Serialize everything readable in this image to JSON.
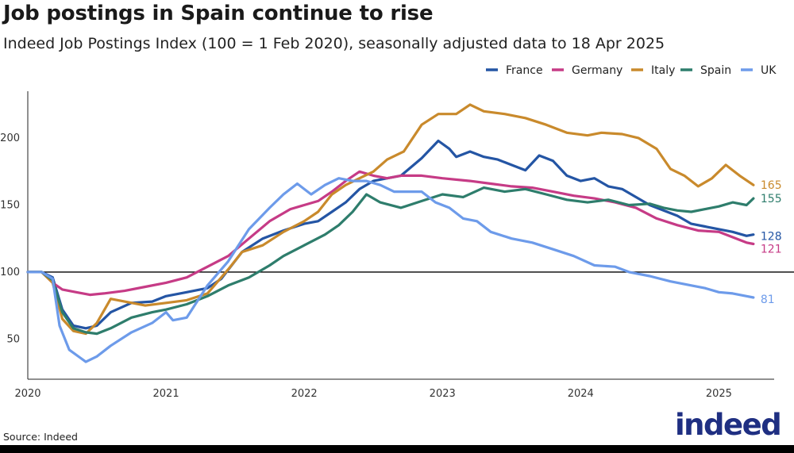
{
  "header": {
    "title": "Job postings in Spain continue to rise",
    "subtitle": "Indeed Job Postings Index (100 = 1 Feb 2020), seasonally adjusted data to 18 Apr 2025"
  },
  "footer": {
    "source": "Source: Indeed",
    "logo_text": "indeed"
  },
  "chart_data": {
    "type": "line",
    "title": "Job postings in Spain continue to rise",
    "subtitle": "Indeed Job Postings Index (100 = 1 Feb 2020), seasonally adjusted data to 18 Apr 2025",
    "xlabel": "",
    "ylabel": "",
    "xlim": [
      2020.0,
      2025.4
    ],
    "ylim": [
      20,
      235
    ],
    "x_ticks": [
      2020,
      2021,
      2022,
      2023,
      2024,
      2025
    ],
    "x_tick_labels": [
      "2020",
      "2021",
      "2022",
      "2023",
      "2024",
      "2025"
    ],
    "y_ticks": [
      50,
      100,
      150,
      200
    ],
    "y_tick_labels": [
      "50",
      "100",
      "150",
      "200"
    ],
    "reference_line": 100,
    "legend_position": "top-right",
    "series": [
      {
        "name": "France",
        "color": "#2455a4",
        "end_label": "128",
        "points": [
          [
            2020.0,
            100
          ],
          [
            2020.1,
            100
          ],
          [
            2020.18,
            96
          ],
          [
            2020.25,
            72
          ],
          [
            2020.33,
            60
          ],
          [
            2020.42,
            58
          ],
          [
            2020.5,
            60
          ],
          [
            2020.6,
            70
          ],
          [
            2020.75,
            77
          ],
          [
            2020.9,
            78
          ],
          [
            2021.0,
            82
          ],
          [
            2021.15,
            85
          ],
          [
            2021.3,
            88
          ],
          [
            2021.4,
            95
          ],
          [
            2021.55,
            115
          ],
          [
            2021.7,
            125
          ],
          [
            2021.85,
            131
          ],
          [
            2022.0,
            136
          ],
          [
            2022.1,
            138
          ],
          [
            2022.2,
            145
          ],
          [
            2022.3,
            152
          ],
          [
            2022.4,
            162
          ],
          [
            2022.5,
            168
          ],
          [
            2022.6,
            170
          ],
          [
            2022.7,
            172
          ],
          [
            2022.85,
            185
          ],
          [
            2022.97,
            198
          ],
          [
            2023.05,
            192
          ],
          [
            2023.1,
            186
          ],
          [
            2023.2,
            190
          ],
          [
            2023.3,
            186
          ],
          [
            2023.4,
            184
          ],
          [
            2023.5,
            180
          ],
          [
            2023.6,
            176
          ],
          [
            2023.7,
            187
          ],
          [
            2023.8,
            183
          ],
          [
            2023.9,
            172
          ],
          [
            2024.0,
            168
          ],
          [
            2024.1,
            170
          ],
          [
            2024.2,
            164
          ],
          [
            2024.3,
            162
          ],
          [
            2024.4,
            156
          ],
          [
            2024.5,
            150
          ],
          [
            2024.6,
            146
          ],
          [
            2024.7,
            142
          ],
          [
            2024.8,
            136
          ],
          [
            2024.9,
            134
          ],
          [
            2025.0,
            132
          ],
          [
            2025.1,
            130
          ],
          [
            2025.2,
            127
          ],
          [
            2025.25,
            128
          ]
        ]
      },
      {
        "name": "Germany",
        "color": "#c63b86",
        "end_label": "121",
        "points": [
          [
            2020.0,
            100
          ],
          [
            2020.1,
            100
          ],
          [
            2020.18,
            92
          ],
          [
            2020.25,
            87
          ],
          [
            2020.35,
            85
          ],
          [
            2020.45,
            83
          ],
          [
            2020.55,
            84
          ],
          [
            2020.7,
            86
          ],
          [
            2020.85,
            89
          ],
          [
            2021.0,
            92
          ],
          [
            2021.15,
            96
          ],
          [
            2021.3,
            104
          ],
          [
            2021.45,
            112
          ],
          [
            2021.6,
            125
          ],
          [
            2021.75,
            138
          ],
          [
            2021.9,
            147
          ],
          [
            2022.0,
            150
          ],
          [
            2022.1,
            153
          ],
          [
            2022.2,
            160
          ],
          [
            2022.3,
            168
          ],
          [
            2022.4,
            175
          ],
          [
            2022.5,
            172
          ],
          [
            2022.6,
            170
          ],
          [
            2022.7,
            172
          ],
          [
            2022.85,
            172
          ],
          [
            2023.0,
            170
          ],
          [
            2023.2,
            168
          ],
          [
            2023.35,
            166
          ],
          [
            2023.5,
            164
          ],
          [
            2023.65,
            163
          ],
          [
            2023.8,
            160
          ],
          [
            2023.95,
            157
          ],
          [
            2024.1,
            155
          ],
          [
            2024.25,
            152
          ],
          [
            2024.4,
            148
          ],
          [
            2024.55,
            140
          ],
          [
            2024.7,
            135
          ],
          [
            2024.85,
            131
          ],
          [
            2025.0,
            130
          ],
          [
            2025.1,
            126
          ],
          [
            2025.2,
            122
          ],
          [
            2025.25,
            121
          ]
        ]
      },
      {
        "name": "Italy",
        "color": "#c98a2c",
        "end_label": "165",
        "points": [
          [
            2020.0,
            100
          ],
          [
            2020.1,
            100
          ],
          [
            2020.18,
            92
          ],
          [
            2020.25,
            65
          ],
          [
            2020.33,
            56
          ],
          [
            2020.42,
            54
          ],
          [
            2020.5,
            62
          ],
          [
            2020.6,
            80
          ],
          [
            2020.7,
            78
          ],
          [
            2020.85,
            75
          ],
          [
            2021.0,
            77
          ],
          [
            2021.15,
            79
          ],
          [
            2021.3,
            84
          ],
          [
            2021.45,
            102
          ],
          [
            2021.55,
            115
          ],
          [
            2021.7,
            120
          ],
          [
            2021.85,
            130
          ],
          [
            2022.0,
            138
          ],
          [
            2022.1,
            145
          ],
          [
            2022.2,
            158
          ],
          [
            2022.3,
            165
          ],
          [
            2022.4,
            170
          ],
          [
            2022.5,
            175
          ],
          [
            2022.6,
            184
          ],
          [
            2022.72,
            190
          ],
          [
            2022.85,
            210
          ],
          [
            2022.97,
            218
          ],
          [
            2023.1,
            218
          ],
          [
            2023.2,
            225
          ],
          [
            2023.3,
            220
          ],
          [
            2023.45,
            218
          ],
          [
            2023.6,
            215
          ],
          [
            2023.75,
            210
          ],
          [
            2023.9,
            204
          ],
          [
            2024.05,
            202
          ],
          [
            2024.15,
            204
          ],
          [
            2024.3,
            203
          ],
          [
            2024.42,
            200
          ],
          [
            2024.55,
            192
          ],
          [
            2024.65,
            177
          ],
          [
            2024.75,
            172
          ],
          [
            2024.85,
            164
          ],
          [
            2024.95,
            170
          ],
          [
            2025.05,
            180
          ],
          [
            2025.15,
            172
          ],
          [
            2025.25,
            165
          ]
        ]
      },
      {
        "name": "Spain",
        "color": "#2e7d6c",
        "end_label": "155",
        "points": [
          [
            2020.0,
            100
          ],
          [
            2020.1,
            100
          ],
          [
            2020.18,
            94
          ],
          [
            2020.25,
            70
          ],
          [
            2020.33,
            58
          ],
          [
            2020.42,
            55
          ],
          [
            2020.5,
            54
          ],
          [
            2020.6,
            58
          ],
          [
            2020.75,
            66
          ],
          [
            2020.9,
            70
          ],
          [
            2021.0,
            72
          ],
          [
            2021.15,
            76
          ],
          [
            2021.3,
            82
          ],
          [
            2021.45,
            90
          ],
          [
            2021.6,
            96
          ],
          [
            2021.75,
            105
          ],
          [
            2021.85,
            112
          ],
          [
            2022.0,
            120
          ],
          [
            2022.15,
            128
          ],
          [
            2022.25,
            135
          ],
          [
            2022.35,
            145
          ],
          [
            2022.45,
            158
          ],
          [
            2022.55,
            152
          ],
          [
            2022.7,
            148
          ],
          [
            2022.85,
            153
          ],
          [
            2023.0,
            158
          ],
          [
            2023.15,
            156
          ],
          [
            2023.3,
            163
          ],
          [
            2023.45,
            160
          ],
          [
            2023.6,
            162
          ],
          [
            2023.75,
            158
          ],
          [
            2023.9,
            154
          ],
          [
            2024.05,
            152
          ],
          [
            2024.2,
            154
          ],
          [
            2024.35,
            150
          ],
          [
            2024.5,
            151
          ],
          [
            2024.6,
            148
          ],
          [
            2024.7,
            146
          ],
          [
            2024.8,
            145
          ],
          [
            2024.9,
            147
          ],
          [
            2025.0,
            149
          ],
          [
            2025.1,
            152
          ],
          [
            2025.2,
            150
          ],
          [
            2025.25,
            155
          ]
        ]
      },
      {
        "name": "UK",
        "color": "#6d9bea",
        "end_label": "81",
        "points": [
          [
            2020.0,
            100
          ],
          [
            2020.1,
            100
          ],
          [
            2020.18,
            95
          ],
          [
            2020.23,
            60
          ],
          [
            2020.3,
            42
          ],
          [
            2020.38,
            36
          ],
          [
            2020.42,
            33
          ],
          [
            2020.5,
            37
          ],
          [
            2020.6,
            45
          ],
          [
            2020.75,
            55
          ],
          [
            2020.9,
            62
          ],
          [
            2021.0,
            70
          ],
          [
            2021.05,
            64
          ],
          [
            2021.15,
            66
          ],
          [
            2021.3,
            90
          ],
          [
            2021.45,
            108
          ],
          [
            2021.6,
            132
          ],
          [
            2021.75,
            148
          ],
          [
            2021.85,
            158
          ],
          [
            2021.95,
            166
          ],
          [
            2022.05,
            158
          ],
          [
            2022.15,
            165
          ],
          [
            2022.25,
            170
          ],
          [
            2022.35,
            168
          ],
          [
            2022.45,
            168
          ],
          [
            2022.55,
            165
          ],
          [
            2022.65,
            160
          ],
          [
            2022.75,
            160
          ],
          [
            2022.85,
            160
          ],
          [
            2022.95,
            152
          ],
          [
            2023.05,
            148
          ],
          [
            2023.15,
            140
          ],
          [
            2023.25,
            138
          ],
          [
            2023.35,
            130
          ],
          [
            2023.5,
            125
          ],
          [
            2023.65,
            122
          ],
          [
            2023.8,
            117
          ],
          [
            2023.95,
            112
          ],
          [
            2024.1,
            105
          ],
          [
            2024.25,
            104
          ],
          [
            2024.35,
            100
          ],
          [
            2024.5,
            97
          ],
          [
            2024.65,
            93
          ],
          [
            2024.8,
            90
          ],
          [
            2024.9,
            88
          ],
          [
            2025.0,
            85
          ],
          [
            2025.1,
            84
          ],
          [
            2025.2,
            82
          ],
          [
            2025.25,
            81
          ]
        ]
      }
    ]
  }
}
